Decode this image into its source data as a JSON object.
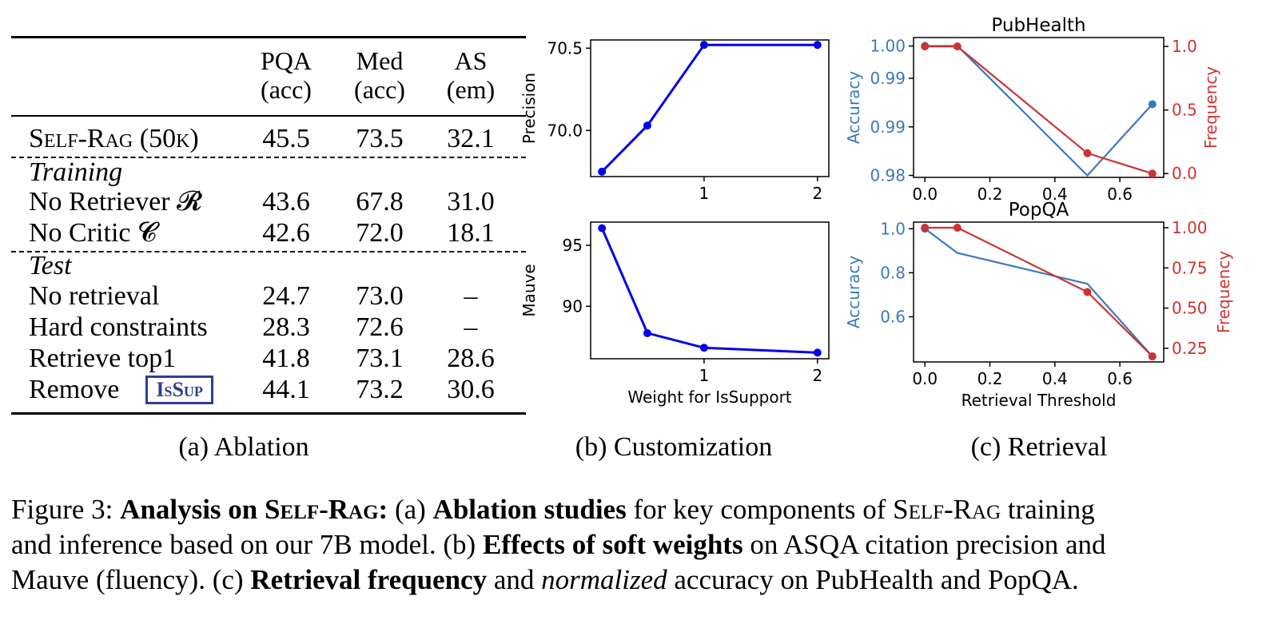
{
  "table": {
    "headers": [
      {
        "line1": "PQA",
        "line2": "(acc)"
      },
      {
        "line1": "Med",
        "line2": "(acc)"
      },
      {
        "line1": "AS",
        "line2": "(em)"
      }
    ],
    "main_row": {
      "label": "Self-Rag (50k)",
      "values": [
        "45.5",
        "73.5",
        "32.1"
      ]
    },
    "sections": [
      {
        "title": "Training",
        "rows": [
          {
            "label": "No Retriever 𝓡",
            "values": [
              "43.6",
              "67.8",
              "31.0"
            ]
          },
          {
            "label": "No Critic 𝓒",
            "values": [
              "42.6",
              "72.0",
              "18.1"
            ]
          }
        ]
      },
      {
        "title": "Test",
        "rows": [
          {
            "label": "No retrieval",
            "values": [
              "24.7",
              "73.0",
              "–"
            ]
          },
          {
            "label": "Hard constraints",
            "values": [
              "28.3",
              "72.6",
              "–"
            ]
          },
          {
            "label": "Retrieve top1",
            "values": [
              "41.8",
              "73.1",
              "28.6"
            ]
          },
          {
            "label": "Remove",
            "badge": "IsSup",
            "values": [
              "44.1",
              "73.2",
              "30.6"
            ]
          }
        ]
      }
    ]
  },
  "subcaptions": [
    "(a) Ablation",
    "(b) Customization",
    "(c) Retrieval"
  ],
  "chart_data": [
    {
      "type": "line",
      "ylabel": "Precision",
      "x": [
        0.1,
        0.5,
        1,
        2
      ],
      "series": [
        {
          "values": [
            69.75,
            70.03,
            70.52,
            70.52
          ],
          "color": "#0000ee"
        }
      ],
      "xticks": [
        "1",
        "2"
      ],
      "yticks": [
        "70.0",
        "70.5"
      ],
      "xlim": [
        0,
        2.1
      ],
      "ylim": [
        69.72,
        70.55
      ]
    },
    {
      "type": "line",
      "xlabel": "Weight for IsSupport",
      "ylabel": "Mauve",
      "x": [
        0.1,
        0.5,
        1,
        2
      ],
      "series": [
        {
          "values": [
            96.4,
            87.8,
            86.6,
            86.2
          ],
          "color": "#0000ee"
        }
      ],
      "xticks": [
        "1",
        "2"
      ],
      "yticks": [
        "90",
        "95"
      ],
      "xlim": [
        0,
        2.1
      ],
      "ylim": [
        85.7,
        96.9
      ]
    },
    {
      "type": "line",
      "title": "PubHealth",
      "ylabel": "Accuracy",
      "y2label": "Frequency",
      "x": [
        0.0,
        0.1,
        0.5,
        0.7
      ],
      "series": [
        {
          "axis": "left",
          "values": [
            1.0,
            1.0,
            0.98,
            0.991
          ],
          "color": "#3a7ab8"
        },
        {
          "axis": "right",
          "values": [
            1.0,
            1.0,
            0.16,
            0.0
          ],
          "color": "#cc3333"
        }
      ],
      "xticks": [
        "0.0",
        "0.2",
        "0.4",
        "0.6"
      ],
      "yticks": [
        "0.98",
        "0.99",
        "0.99",
        "1.00"
      ],
      "y2ticks": [
        "0.0",
        "0.5",
        "1.0"
      ],
      "xlim": [
        -0.035,
        0.735
      ],
      "ylim": [
        0.9797,
        1.0013
      ],
      "y2lim": [
        -0.03,
        1.07
      ]
    },
    {
      "type": "line",
      "title": "PopQA",
      "xlabel": "Retrieval Threshold",
      "ylabel": "Accuracy",
      "y2label": "Frequency",
      "x": [
        0.0,
        0.1,
        0.5,
        0.7
      ],
      "series": [
        {
          "axis": "left",
          "values": [
            1.0,
            0.89,
            0.75,
            0.42
          ],
          "color": "#3a7ab8"
        },
        {
          "axis": "right",
          "values": [
            1.0,
            1.0,
            0.6,
            0.2
          ],
          "color": "#cc3333"
        }
      ],
      "xticks": [
        "0.0",
        "0.2",
        "0.4",
        "0.6"
      ],
      "yticks": [
        "0.6",
        "0.8",
        "1.0"
      ],
      "y2ticks": [
        "0.25",
        "0.50",
        "0.75",
        "1.00"
      ],
      "xlim": [
        -0.035,
        0.735
      ],
      "ylim": [
        0.395,
        1.03
      ],
      "y2lim": [
        0.165,
        1.035
      ]
    }
  ],
  "caption": {
    "label": "Figure 3:",
    "title_bold": "Analysis on",
    "title_sc": "Self-Rag:",
    "p1_a": "(a)",
    "p1_bold": "Ablation studies",
    "p1_b": "for key components of",
    "p1_sc": "Self-Rag",
    "p1_c": "training",
    "p2_a": "and inference based on our 7B model. (b)",
    "p2_bold": "Effects of soft weights",
    "p2_b": "on ASQA citation precision and",
    "p3_a": "Mauve (fluency). (c)",
    "p3_bold": "Retrieval frequency",
    "p3_b": "and",
    "p3_italic": "normalized",
    "p3_c": "accuracy on PubHealth and PopQA."
  }
}
